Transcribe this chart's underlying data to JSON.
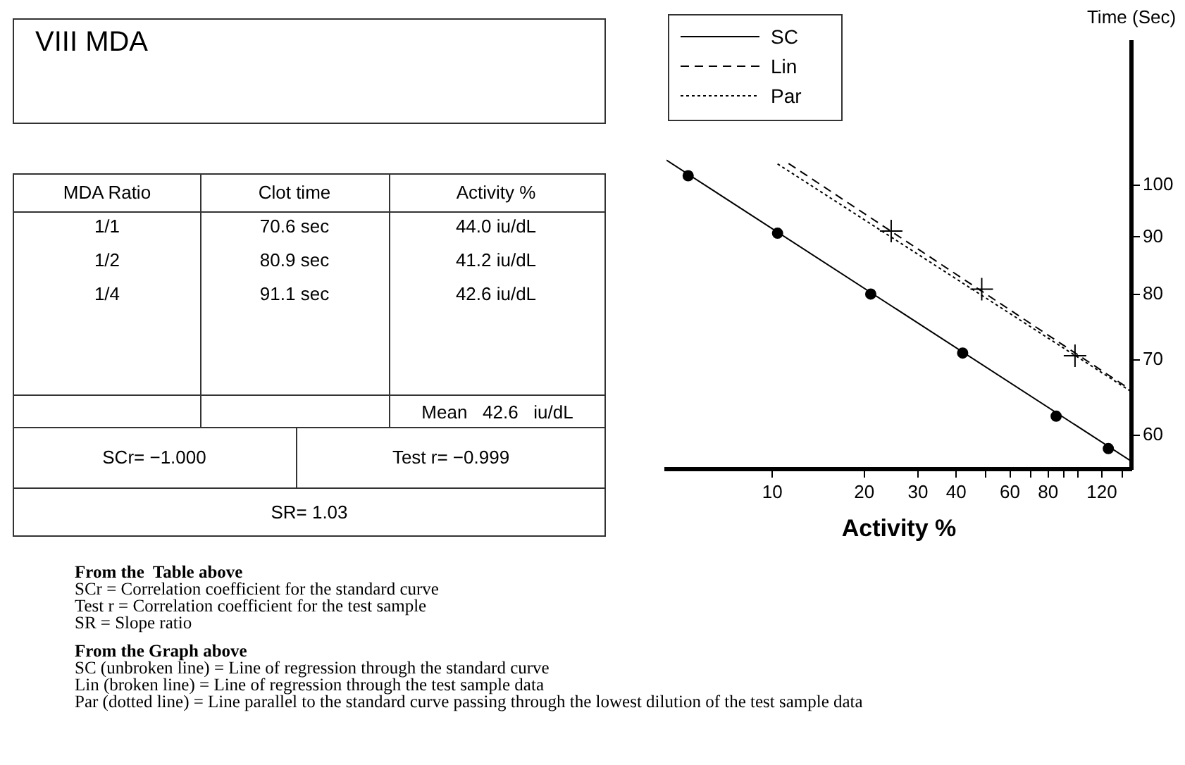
{
  "chart_data": [
    {
      "type": "line",
      "xlabel": "Activity %",
      "ylabel": "Time (Sec)",
      "log": "xy",
      "legend": "top left",
      "grid": false,
      "xlim": [
        4.5,
        150
      ],
      "xticks": [
        10,
        20,
        30,
        40,
        {
          "value": 50,
          "label": null
        },
        60,
        {
          "value": 70,
          "label": null
        },
        80,
        {
          "value": 90,
          "label": null
        },
        {
          "value": 100,
          "label": null
        },
        120,
        {
          "value": 140,
          "label": null
        }
      ],
      "ylim": [
        56,
        134
      ],
      "yticks": [
        60,
        70,
        80,
        90,
        100
      ],
      "series": [
        {
          "name": "SC",
          "type": "line",
          "color": "#000000",
          "line_style": "solid",
          "marker": "none",
          "x": [
            4.5,
            150
          ],
          "values": [
            105.3,
            56.9
          ]
        },
        {
          "name": "Lin",
          "type": "line",
          "color": "#000000",
          "line_style": "dashed",
          "marker": "none",
          "x": [
            11.3,
            150
          ],
          "values": [
            104.6,
            65.8
          ]
        },
        {
          "name": "Par",
          "type": "line",
          "color": "#000000",
          "line_style": "dotted",
          "marker": "none",
          "x": [
            10.4,
            150
          ],
          "values": [
            104.5,
            65.6
          ]
        },
        {
          "type": "scatter",
          "color": "#000000",
          "marker": "circle",
          "x": [
            5.3,
            10.4,
            21,
            42,
            85,
            126
          ],
          "values": [
            102,
            90.7,
            80.1,
            71,
            62.4,
            58.4
          ]
        },
        {
          "type": "scatter",
          "color": "#000000",
          "marker": "cross",
          "x": [
            24.5,
            48.5,
            98
          ],
          "values": [
            91.1,
            80.9,
            70.6
          ]
        }
      ]
    },
    {
      "type": "other",
      "title": "VIII MDA",
      "annotations": [
        "MDA Ratio",
        "Clot time",
        "Activity %",
        "1/1",
        "70.6 sec",
        "44.0 iu/dL",
        "1/2",
        "80.9 sec",
        "41.2 iu/dL",
        "1/4",
        "91.1 sec",
        "42.6 iu/dL",
        "Mean   42.6   iu/dL",
        "SCr= −1.000",
        "Test r= −0.999",
        "SR= 1.03",
        "From the  Table above",
        "SCr = Correlation coefficient for the standard curve",
        "Test r = Correlation coefficient for the test sample",
        "SR = Slope ratio",
        "From the Graph above",
        "SC (unbroken line) = Line of regression through the standard curve",
        "Lin (broken line) = Line of regression through the test sample data",
        "Par (dotted line) = Line parallel to the standard curve passing through the lowest dilution of the test sample data"
      ]
    }
  ]
}
